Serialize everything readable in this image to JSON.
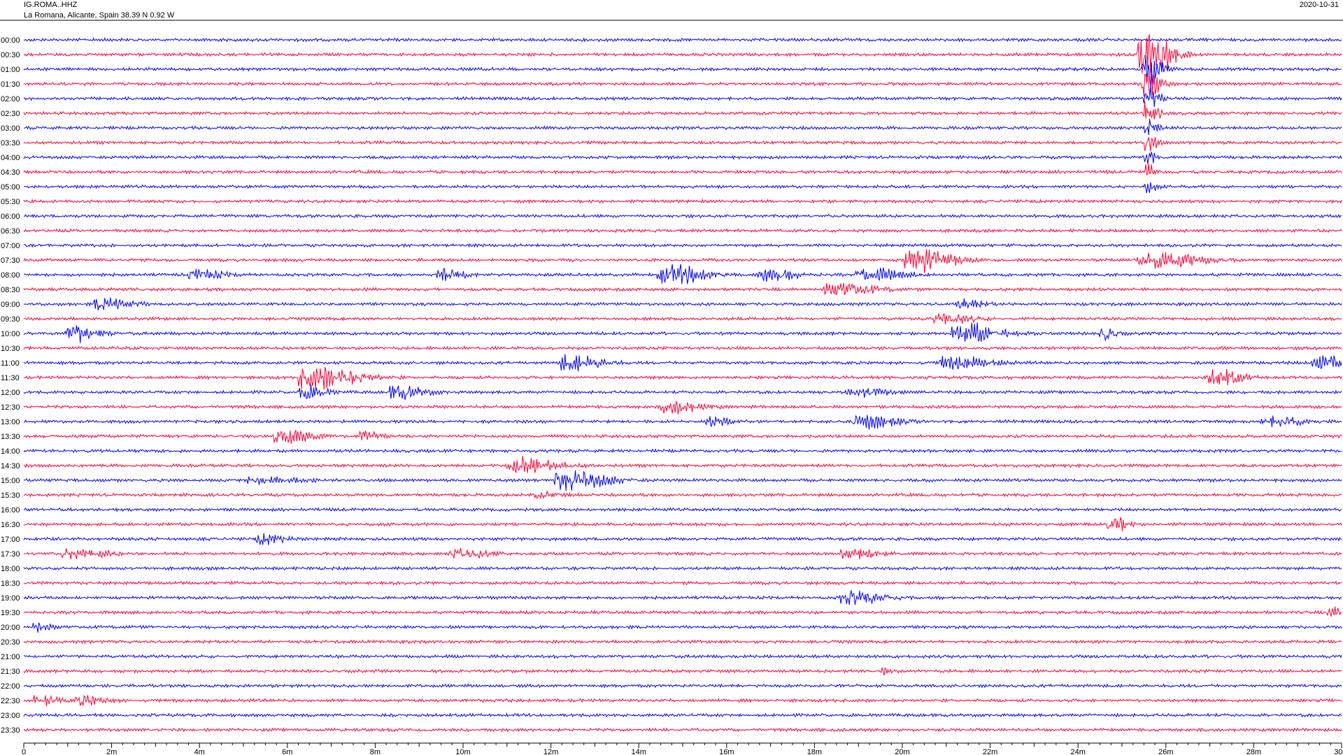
{
  "header": {
    "station": "IG.ROMA..HHZ",
    "location": "La Romana, Alicante, Spain  38.39 N 0.92 W",
    "date": "2020-10-31"
  },
  "colors": {
    "even_row": "#0000ff",
    "odd_row": "#ff0033",
    "axis": "#000000"
  },
  "chart_data": {
    "type": "line",
    "title": "IG.ROMA..HHZ",
    "subtitle": "La Romana, Alicante, Spain  38.39 N 0.92 W",
    "date": "2020-10-31",
    "rows": [
      "00:00",
      "00:30",
      "01:00",
      "01:30",
      "02:00",
      "02:30",
      "03:00",
      "03:30",
      "04:00",
      "04:30",
      "05:00",
      "05:30",
      "06:00",
      "06:30",
      "07:00",
      "07:30",
      "08:00",
      "08:30",
      "09:00",
      "09:30",
      "10:00",
      "10:30",
      "11:00",
      "11:30",
      "12:00",
      "12:30",
      "13:00",
      "13:30",
      "14:00",
      "14:30",
      "15:00",
      "15:30",
      "16:00",
      "16:30",
      "17:00",
      "17:30",
      "18:00",
      "18:30",
      "19:00",
      "19:30",
      "20:00",
      "20:30",
      "21:00",
      "21:30",
      "22:00",
      "22:30",
      "23:00",
      "23:30"
    ],
    "x_ticks": [
      "0",
      "2m",
      "4m",
      "6m",
      "8m",
      "10m",
      "12m",
      "14m",
      "16m",
      "18m",
      "20m",
      "22m",
      "24m",
      "26m",
      "28m",
      "30m"
    ],
    "xlim": [
      0,
      30
    ],
    "grid": false,
    "events": [
      {
        "row": 1,
        "t": 25.6,
        "amp": 16,
        "dur": 0.9
      },
      {
        "row": 2,
        "t": 25.6,
        "amp": 12,
        "dur": 0.5
      },
      {
        "row": 3,
        "t": 25.6,
        "amp": 10,
        "dur": 0.5
      },
      {
        "row": 4,
        "t": 25.6,
        "amp": 9,
        "dur": 0.4
      },
      {
        "row": 5,
        "t": 25.6,
        "amp": 8,
        "dur": 0.4
      },
      {
        "row": 6,
        "t": 25.6,
        "amp": 7,
        "dur": 0.3
      },
      {
        "row": 7,
        "t": 25.6,
        "amp": 6,
        "dur": 0.3
      },
      {
        "row": 8,
        "t": 25.6,
        "amp": 5,
        "dur": 0.3
      },
      {
        "row": 9,
        "t": 25.6,
        "amp": 5,
        "dur": 0.3
      },
      {
        "row": 10,
        "t": 25.6,
        "amp": 4,
        "dur": 0.3
      },
      {
        "row": 15,
        "t": 20.4,
        "amp": 8,
        "dur": 1.2
      },
      {
        "row": 15,
        "t": 25.8,
        "amp": 5,
        "dur": 1.6
      },
      {
        "row": 16,
        "t": 4.0,
        "amp": 3,
        "dur": 0.9
      },
      {
        "row": 16,
        "t": 9.6,
        "amp": 4,
        "dur": 0.7
      },
      {
        "row": 16,
        "t": 14.8,
        "amp": 6,
        "dur": 1.3
      },
      {
        "row": 16,
        "t": 17.0,
        "amp": 4,
        "dur": 1.0
      },
      {
        "row": 16,
        "t": 19.3,
        "amp": 4,
        "dur": 1.2
      },
      {
        "row": 17,
        "t": 18.6,
        "amp": 4,
        "dur": 1.3
      },
      {
        "row": 18,
        "t": 1.9,
        "amp": 4,
        "dur": 1.0
      },
      {
        "row": 18,
        "t": 21.4,
        "amp": 3,
        "dur": 0.7
      },
      {
        "row": 19,
        "t": 21.0,
        "amp": 3,
        "dur": 1.0
      },
      {
        "row": 20,
        "t": 1.2,
        "amp": 5,
        "dur": 0.9
      },
      {
        "row": 20,
        "t": 21.5,
        "amp": 6,
        "dur": 1.3
      },
      {
        "row": 20,
        "t": 24.6,
        "amp": 5,
        "dur": 0.4
      },
      {
        "row": 22,
        "t": 12.5,
        "amp": 5,
        "dur": 1.1
      },
      {
        "row": 22,
        "t": 21.2,
        "amp": 4,
        "dur": 1.3
      },
      {
        "row": 22,
        "t": 29.6,
        "amp": 4,
        "dur": 1.0
      },
      {
        "row": 23,
        "t": 6.7,
        "amp": 7,
        "dur": 1.6
      },
      {
        "row": 23,
        "t": 27.2,
        "amp": 5,
        "dur": 0.9
      },
      {
        "row": 24,
        "t": 6.4,
        "amp": 4,
        "dur": 0.8
      },
      {
        "row": 24,
        "t": 8.6,
        "amp": 4,
        "dur": 0.9
      },
      {
        "row": 24,
        "t": 19.0,
        "amp": 3,
        "dur": 1.0
      },
      {
        "row": 25,
        "t": 14.8,
        "amp": 4,
        "dur": 1.0
      },
      {
        "row": 26,
        "t": 15.7,
        "amp": 3,
        "dur": 0.6
      },
      {
        "row": 26,
        "t": 19.2,
        "amp": 4,
        "dur": 1.1
      },
      {
        "row": 26,
        "t": 28.5,
        "amp": 3,
        "dur": 1.1
      },
      {
        "row": 27,
        "t": 6.0,
        "amp": 4,
        "dur": 1.0
      },
      {
        "row": 27,
        "t": 7.8,
        "amp": 4,
        "dur": 0.5
      },
      {
        "row": 29,
        "t": 11.4,
        "amp": 5,
        "dur": 1.4
      },
      {
        "row": 30,
        "t": 12.5,
        "amp": 6,
        "dur": 1.4
      },
      {
        "row": 30,
        "t": 5.5,
        "amp": 2,
        "dur": 1.4
      },
      {
        "row": 31,
        "t": 11.8,
        "amp": 2,
        "dur": 0.6
      },
      {
        "row": 33,
        "t": 24.8,
        "amp": 5,
        "dur": 0.5
      },
      {
        "row": 34,
        "t": 5.5,
        "amp": 3,
        "dur": 0.7
      },
      {
        "row": 35,
        "t": 1.2,
        "amp": 3,
        "dur": 1.2
      },
      {
        "row": 35,
        "t": 10.0,
        "amp": 3,
        "dur": 1.0
      },
      {
        "row": 35,
        "t": 18.9,
        "amp": 3,
        "dur": 1.0
      },
      {
        "row": 38,
        "t": 18.9,
        "amp": 4,
        "dur": 1.1
      },
      {
        "row": 39,
        "t": 29.8,
        "amp": 3,
        "dur": 0.5
      },
      {
        "row": 40,
        "t": 0.3,
        "amp": 3,
        "dur": 0.5
      },
      {
        "row": 45,
        "t": 0.4,
        "amp": 3,
        "dur": 0.6
      },
      {
        "row": 45,
        "t": 1.4,
        "amp": 3,
        "dur": 0.8
      },
      {
        "row": 43,
        "t": 19.6,
        "amp": 2,
        "dur": 0.3
      }
    ]
  }
}
